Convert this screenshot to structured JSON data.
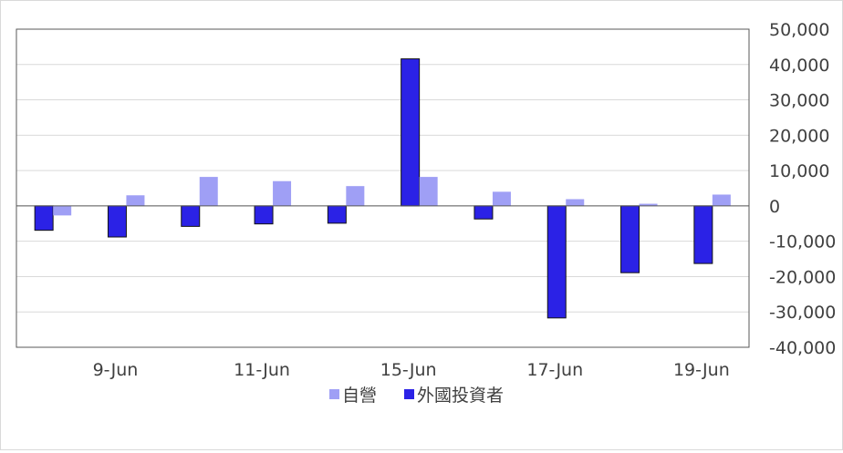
{
  "chart_data": {
    "type": "bar",
    "title": "",
    "xlabel": "",
    "ylabel": "",
    "categories": [
      "",
      "9-Jun",
      "",
      "11-Jun",
      "",
      "15-Jun",
      "",
      "17-Jun",
      "",
      "19-Jun"
    ],
    "ylim": [
      -40000,
      50000
    ],
    "y_ticks": [
      50000,
      40000,
      30000,
      20000,
      10000,
      0,
      -10000,
      -20000,
      -30000,
      -40000
    ],
    "y_tick_labels": [
      "50,000",
      "40,000",
      "30,000",
      "20,000",
      "10,000",
      "0",
      "-10,000",
      "-20,000",
      "-30,000",
      "-40,000"
    ],
    "y_axis_position": "right",
    "grid": true,
    "legend_position": "bottom",
    "series": [
      {
        "name": "外國投資者",
        "color": "#2b22e6",
        "values": [
          -6900,
          -8800,
          -5800,
          -5100,
          -4900,
          41600,
          -3700,
          -31700,
          -18900,
          -16300
        ]
      },
      {
        "name": "自營",
        "color": "#9f9ff5",
        "values": [
          -2700,
          3000,
          8200,
          7000,
          5600,
          8200,
          4000,
          1900,
          600,
          3200
        ]
      }
    ],
    "legend": [
      {
        "label": "自營",
        "color": "#9f9ff5"
      },
      {
        "label": "外國投資者",
        "color": "#2b22e6"
      }
    ]
  }
}
